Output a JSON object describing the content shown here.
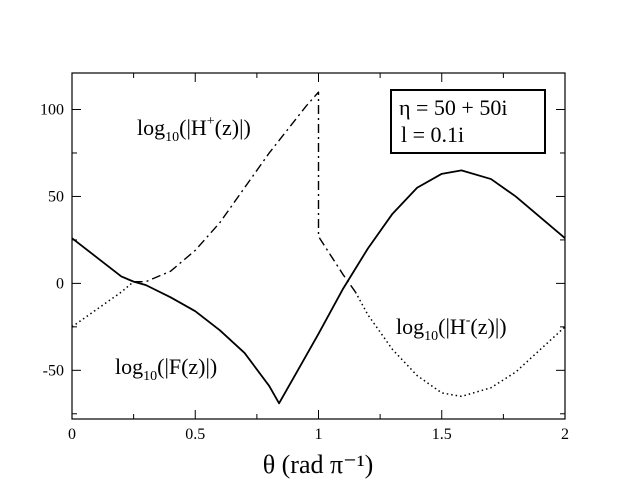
{
  "chart_data": {
    "type": "line",
    "title": "",
    "xlabel": "θ (rad π⁻¹)",
    "ylabel": "",
    "xlim": [
      0,
      2
    ],
    "ylim": [
      -78,
      121
    ],
    "x_ticks": [
      "0",
      "0.5",
      "1",
      "1.5",
      "2"
    ],
    "y_ticks": [
      "-50",
      "0",
      "50",
      "100"
    ],
    "legend": {
      "position": "top-right",
      "entries": [
        "η = 50 + 50i",
        "l = 0.1i"
      ]
    },
    "annotations": {
      "h_plus": {
        "prefix": "log",
        "sub": "10",
        "open": "(|H",
        "sup": "+",
        "close": "(z)|)"
      },
      "h_minus": {
        "prefix": "log",
        "sub": "10",
        "open": "(|H",
        "sup": "-",
        "close": "(z)|)"
      },
      "f": {
        "prefix": "log",
        "sub": "10",
        "rest": "(|F(z)|)"
      }
    },
    "series": [
      {
        "name": "log10(|F(z)|)",
        "style": "solid",
        "x": [
          0,
          0.1,
          0.2,
          0.25,
          0.3,
          0.4,
          0.5,
          0.6,
          0.7,
          0.8,
          0.84,
          0.9,
          1.0,
          1.1,
          1.2,
          1.3,
          1.4,
          1.5,
          1.58,
          1.7,
          1.8,
          1.9,
          2.0
        ],
        "y": [
          26,
          15,
          4,
          1,
          -1,
          -8,
          -16,
          -27,
          -40,
          -59,
          -69,
          -54,
          -29,
          -3,
          20,
          40,
          55,
          63,
          65,
          60,
          50,
          38,
          26
        ]
      },
      {
        "name": "log10(|H+(z)|)",
        "style": "dashdot",
        "x": [
          0.25,
          0.3,
          0.4,
          0.5,
          0.6,
          0.7,
          0.8,
          0.9,
          0.95,
          1.0,
          1.0,
          1.05,
          1.1,
          1.15
        ],
        "y": [
          1,
          1,
          7,
          19,
          35,
          55,
          75,
          93,
          102,
          110,
          27,
          16,
          5,
          -5
        ]
      },
      {
        "name": "log10(|H-(z)|)",
        "style": "dotted",
        "x": [
          0,
          0.1,
          0.2,
          0.25,
          1.15,
          1.2,
          1.3,
          1.4,
          1.5,
          1.58,
          1.7,
          1.8,
          1.9,
          2.0
        ],
        "y": [
          -25,
          -15,
          -5,
          1,
          -5,
          -18,
          -38,
          -53,
          -63,
          -65,
          -60,
          -51,
          -38,
          -25
        ]
      }
    ]
  }
}
